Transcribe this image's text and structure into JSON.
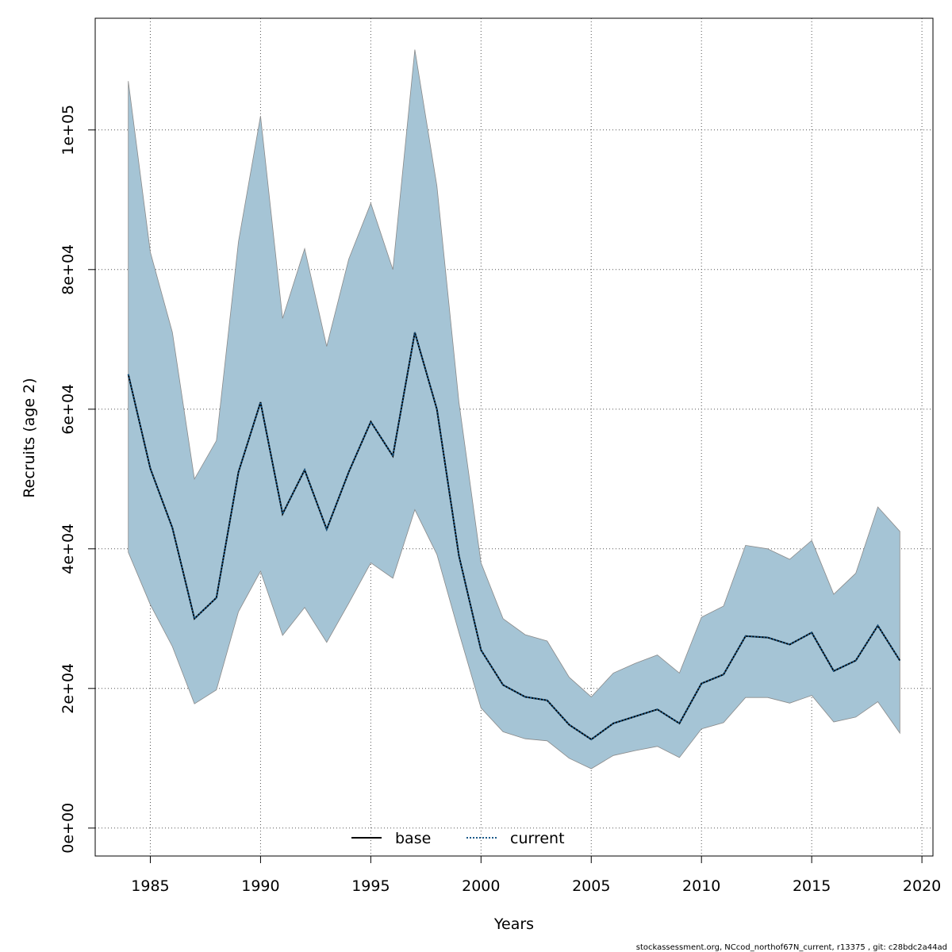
{
  "chart_data": {
    "type": "line",
    "xlabel": "Years",
    "ylabel": "Recruits (age 2)",
    "xlim": [
      1982.5,
      2020.5
    ],
    "ylim": [
      -4000,
      116000
    ],
    "x_ticks": [
      1985,
      1990,
      1995,
      2000,
      2005,
      2010,
      2015,
      2020
    ],
    "x_tick_labels": [
      "1985",
      "1990",
      "1995",
      "2000",
      "2005",
      "2010",
      "2015",
      "2020"
    ],
    "y_ticks": [
      0,
      20000,
      40000,
      60000,
      80000,
      100000
    ],
    "y_tick_labels": [
      "0e+00",
      "2e+04",
      "4e+04",
      "6e+04",
      "8e+04",
      "1e+05"
    ],
    "grid": true,
    "legend": {
      "placement": "bottom-center",
      "entries": [
        {
          "label": "base",
          "style": "solid",
          "color": "#000000"
        },
        {
          "label": "current",
          "style": "dotted",
          "color": "#1a5a8a"
        }
      ]
    },
    "band_color": "#a5c4d5",
    "years": [
      1984,
      1985,
      1986,
      1987,
      1988,
      1989,
      1990,
      1991,
      1992,
      1993,
      1994,
      1995,
      1996,
      1997,
      1998,
      1999,
      2000,
      2001,
      2002,
      2003,
      2004,
      2005,
      2006,
      2007,
      2008,
      2009,
      2010,
      2011,
      2012,
      2013,
      2014,
      2015,
      2016,
      2017,
      2018,
      2019
    ],
    "series": [
      {
        "name": "base",
        "values": [
          65000,
          51500,
          43000,
          30000,
          33000,
          51000,
          61000,
          45000,
          51300,
          42800,
          51000,
          58200,
          53300,
          71000,
          60000,
          39000,
          25500,
          20500,
          18800,
          18300,
          14800,
          12700,
          15000,
          16000,
          17000,
          15000,
          20700,
          22000,
          27500,
          27300,
          26300,
          28000,
          22500,
          24000,
          29000,
          24000
        ]
      },
      {
        "name": "current",
        "values": [
          65000,
          51500,
          43000,
          30000,
          33000,
          51000,
          61000,
          45000,
          51300,
          42800,
          51000,
          58200,
          53300,
          71000,
          60000,
          39000,
          25500,
          20500,
          18800,
          18300,
          14800,
          12700,
          15000,
          16000,
          17000,
          15000,
          20700,
          22000,
          27500,
          27300,
          26300,
          28000,
          22500,
          24000,
          29000,
          24000
        ]
      }
    ],
    "band": {
      "lower": [
        39500,
        32000,
        26000,
        17800,
        19800,
        31000,
        36800,
        27600,
        31600,
        26600,
        32200,
        38000,
        35800,
        45600,
        39200,
        28000,
        17200,
        13800,
        12800,
        12500,
        10000,
        8500,
        10400,
        11100,
        11700,
        10100,
        14200,
        15100,
        18700,
        18700,
        17900,
        19000,
        15200,
        15900,
        18100,
        13600
      ],
      "upper": [
        107000,
        82500,
        71000,
        50000,
        55500,
        84000,
        102000,
        73000,
        83000,
        69000,
        81500,
        89500,
        80000,
        111500,
        92000,
        61000,
        38000,
        30000,
        27700,
        26800,
        21600,
        18800,
        22200,
        23600,
        24800,
        22200,
        30200,
        31800,
        40500,
        40000,
        38500,
        41200,
        33500,
        36500,
        46000,
        42500
      ]
    },
    "footer": "stockassessment.org, NCcod_northof67N_current, r13375 , git: c28bdc2a44ad"
  }
}
